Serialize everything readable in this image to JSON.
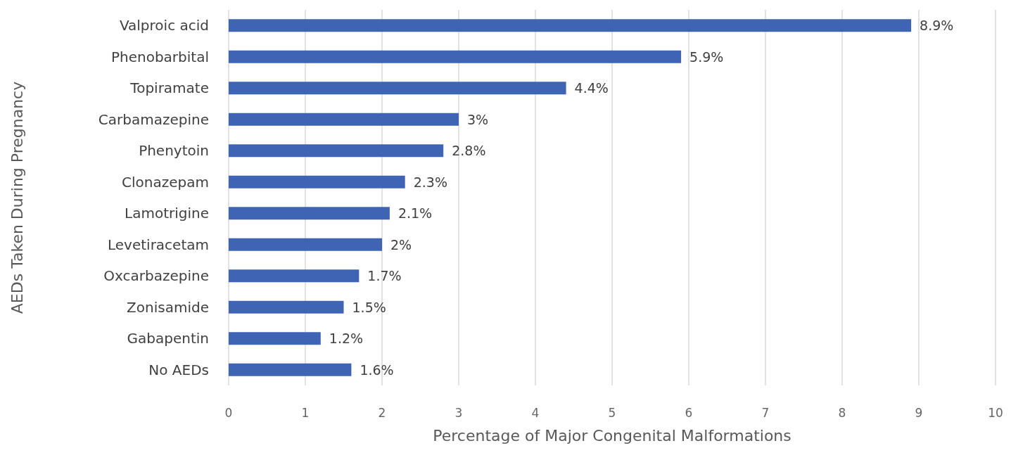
{
  "chart_data": {
    "type": "bar",
    "orientation": "horizontal",
    "xlabel": "Percentage of Major Congenital Malformations",
    "ylabel": "AEDs Taken During Pregnancy",
    "categories": [
      "Valproic acid",
      "Phenobarbital",
      "Topiramate",
      "Carbamazepine",
      "Phenytoin",
      "Clonazepam",
      "Lamotrigine",
      "Levetiracetam",
      "Oxcarbazepine",
      "Zonisamide",
      "Gabapentin",
      "No AEDs"
    ],
    "values": [
      8.9,
      5.9,
      4.4,
      3,
      2.8,
      2.3,
      2.1,
      2,
      1.7,
      1.5,
      1.2,
      1.6
    ],
    "value_labels": [
      "8.9%",
      "5.9%",
      "4.4%",
      "3%",
      "2.8%",
      "2.3%",
      "2.1%",
      "2%",
      "1.7%",
      "1.5%",
      "1.2%",
      "1.6%"
    ],
    "color": "#3f64b4",
    "xlim": [
      0,
      10
    ],
    "xticks": [
      0,
      1,
      2,
      3,
      4,
      5,
      6,
      7,
      8,
      9,
      10
    ],
    "grid": "x"
  }
}
